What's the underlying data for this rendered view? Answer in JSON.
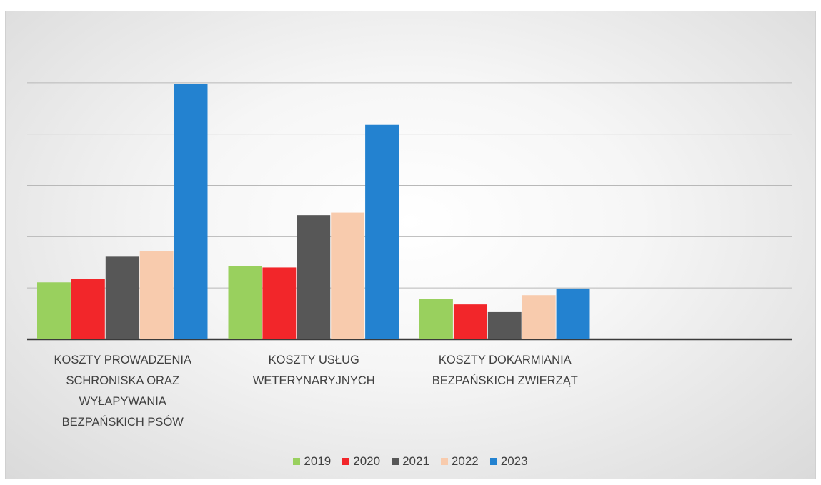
{
  "chart_data": {
    "type": "bar",
    "categories": [
      "KOSZTY PROWADZENIA SCHRONISKA ORAZ WYŁAPYWANIA BEZPAŃSKICH PSÓW",
      "KOSZTY USŁUG WETERYNARYJNYCH",
      "KOSZTY DOKARMIANIA BEZPAŃSKICH ZWIERZĄT",
      null
    ],
    "series": [
      {
        "name": "2019",
        "color": "#99d05e",
        "values": [
          1.11,
          1.43,
          0.78,
          null
        ]
      },
      {
        "name": "2020",
        "color": "#f2262a",
        "values": [
          1.18,
          1.4,
          0.68,
          null
        ]
      },
      {
        "name": "2021",
        "color": "#575757",
        "values": [
          1.61,
          2.42,
          0.53,
          null
        ]
      },
      {
        "name": "2022",
        "color": "#f8cbad",
        "values": [
          1.72,
          2.47,
          0.86,
          null
        ]
      },
      {
        "name": "2023",
        "color": "#2382d0",
        "values": [
          4.97,
          4.18,
          0.99,
          null
        ]
      }
    ],
    "ylim": [
      0,
      6
    ],
    "yticks": [
      0,
      1,
      2,
      3,
      4,
      5
    ],
    "grid": true,
    "legend": "bottom"
  }
}
